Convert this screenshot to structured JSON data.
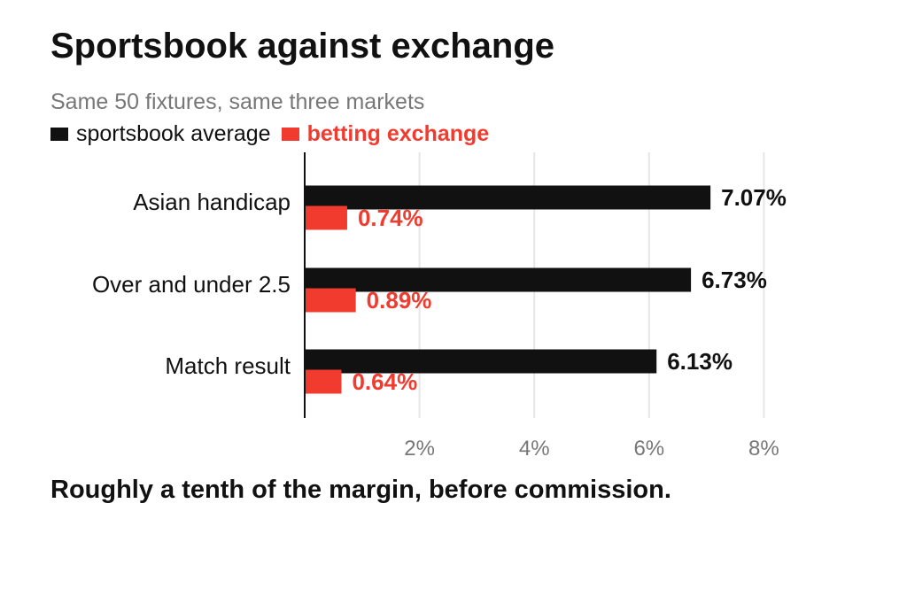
{
  "title": "Sportsbook against exchange",
  "subtitle": "Same 50 fixtures, same three markets",
  "note": "Roughly a tenth of the margin, before commission.",
  "colors": {
    "sportsbook": "#111111",
    "exchange": "#f23b2f",
    "grid": "#e6e6e6",
    "axis": "#111111",
    "tick_text": "#777777"
  },
  "chart_data": {
    "type": "bar",
    "orientation": "horizontal",
    "categories": [
      "Asian handicap",
      "Over and under 2.5",
      "Match result"
    ],
    "series": [
      {
        "name": "sportsbook average",
        "values": [
          7.07,
          6.73,
          6.13
        ],
        "labels": [
          "7.07%",
          "6.73%",
          "6.13%"
        ]
      },
      {
        "name": "betting exchange",
        "values": [
          0.74,
          0.89,
          0.64
        ],
        "labels": [
          "0.74%",
          "0.89%",
          "0.64%"
        ]
      }
    ],
    "x_ticks": [
      2,
      4,
      6,
      8
    ],
    "x_tick_labels": [
      "2%",
      "4%",
      "6%",
      "8%"
    ],
    "xlim": [
      0,
      8
    ],
    "grid": true,
    "legend_position": "top-left"
  }
}
